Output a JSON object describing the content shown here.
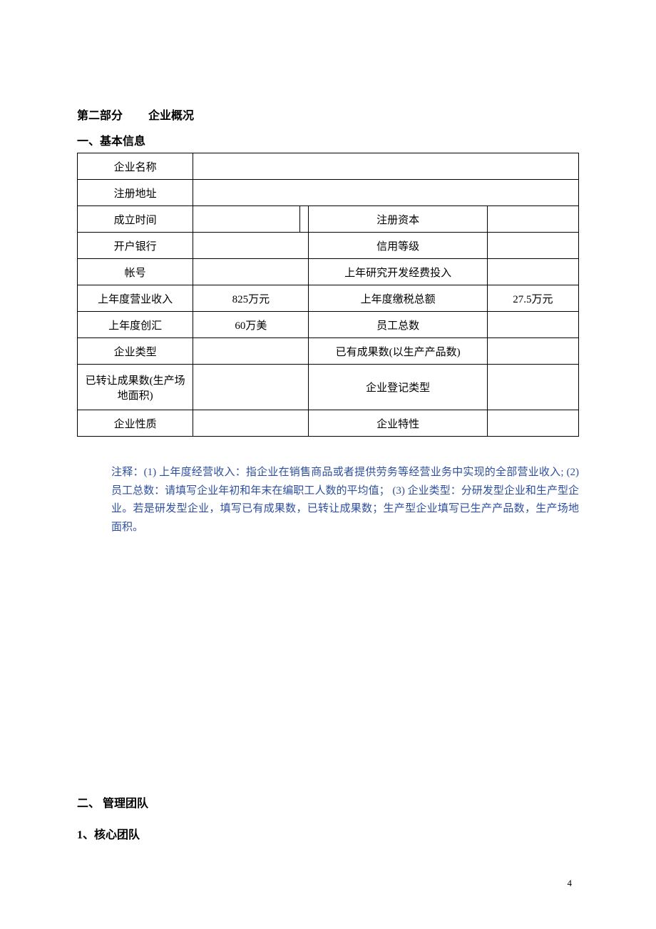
{
  "header": {
    "part_label": "第二部分",
    "part_title": "企业概况"
  },
  "section1": {
    "title": "一、基本信息",
    "table": {
      "row1": {
        "label": "企业名称",
        "value": ""
      },
      "row2": {
        "label": "注册地址",
        "value": ""
      },
      "row3": {
        "label1": "成立时间",
        "value1": "",
        "label2": "注册资本",
        "value2": ""
      },
      "row4": {
        "label1": "开户银行",
        "value1": "",
        "label2": "信用等级",
        "value2": ""
      },
      "row5": {
        "label1": "帐号",
        "value1": "",
        "label2": "上年研究开发经费投入",
        "value2": ""
      },
      "row6": {
        "label1": "上年度营业收入",
        "value1": "825万元",
        "label2": "上年度缴税总额",
        "value2": "27.5万元"
      },
      "row7": {
        "label1": "上年度创汇",
        "value1": "60万美",
        "label2": "员工总数",
        "value2": ""
      },
      "row8": {
        "label1": "企业类型",
        "value1": "",
        "label2": "已有成果数(以生产产品数)",
        "value2": ""
      },
      "row9": {
        "label1": "已转让成果数(生产场地面积)",
        "value1": "",
        "label2": "企业登记类型",
        "value2": ""
      },
      "row10": {
        "label1": "企业性质",
        "value1": "",
        "label2": "企业特性",
        "value2": ""
      }
    },
    "note": "注释：(1) 上年度经营收入：指企业在销售商品或者提供劳务等经营业务中实现的全部营业收入; (2) 员工总数：请填写企业年初和年末在编职工人数的平均值； (3) 企业类型：分研发型企业和生产型企业。若是研发型企业，填写已有成果数，已转让成果数；生产型企业填写已生产产品数，生产场地面积。",
    "note_color": "#2e4fa0"
  },
  "section2": {
    "title": "二、 管理团队",
    "subtitle": "1、核心团队"
  },
  "page_number": "4",
  "styling": {
    "background_color": "#ffffff",
    "text_color": "#000000",
    "border_color": "#000000",
    "note_color": "#2e4fa0",
    "base_fontsize": 15,
    "heading_fontsize": 16
  }
}
